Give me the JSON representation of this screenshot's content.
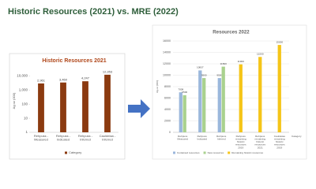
{
  "header": {
    "title": "Historic Resources (2021) vs. MRE (2022)"
  },
  "chart_data": [
    {
      "type": "bar",
      "title": "Historic Resources 2021",
      "y_label": "Ag oz (000)",
      "log_scale": true,
      "categories": [
        "Rehpuss - Measured",
        "Rehpuss - Indicated",
        "Rehpuss - Inferred",
        "Cauldelaa - Inferred"
      ],
      "series": [
        {
          "name": "Category",
          "color": "#8b3a10",
          "values": [
            2961,
            3460,
            4247,
            12353
          ],
          "value_labels": [
            "2,961",
            "3,460",
            "4,247",
            "12,353"
          ]
        }
      ],
      "ylim": [
        1,
        30000
      ],
      "yticks": [
        1,
        10,
        100,
        {
          "value": 1000,
          "label": "1,000"
        },
        {
          "value": 10000,
          "label": "10,000"
        }
      ],
      "grid": false
    },
    {
      "type": "bar",
      "title": "Resources 2022",
      "y_label": "Ag oz (000)",
      "x_label": "Category",
      "log_scale": false,
      "categories": [
        "Rehpuss Measured",
        "Rehpuss Indicated",
        "Rehpuss Inferred",
        "Rehpuss remaining historic resources 2019",
        "Rehpuss remaining historic resources 2021",
        "Cauldelaa remaining historic resources 2019"
      ],
      "series": [
        {
          "name": "Contained resources",
          "color": "#9bb7dc",
          "values": [
            7008,
            10837,
            9500,
            null,
            null,
            null
          ]
        },
        {
          "name": "New resources",
          "color": "#a9d18e",
          "values": [
            6500,
            9500,
            11500,
            null,
            null,
            null
          ]
        },
        {
          "name": "Remaining historic resources",
          "color": "#f5c518",
          "values": [
            null,
            null,
            null,
            11900,
            13200,
            15300
          ]
        }
      ],
      "ylim": [
        0,
        16000
      ],
      "yticks": [
        0,
        2000,
        4000,
        6000,
        8000,
        10000,
        12000,
        14000,
        16000
      ],
      "grid": true
    }
  ]
}
